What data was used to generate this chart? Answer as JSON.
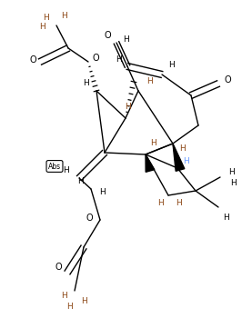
{
  "figsize": [
    2.77,
    3.61
  ],
  "dpi": 100,
  "bg_color": "#ffffff",
  "black": "#000000",
  "blue": "#6699FF",
  "brown": "#8B4513",
  "lw": 1.0,
  "fs": 6.5,
  "xlim": [
    0,
    277
  ],
  "ylim": [
    0,
    361
  ]
}
